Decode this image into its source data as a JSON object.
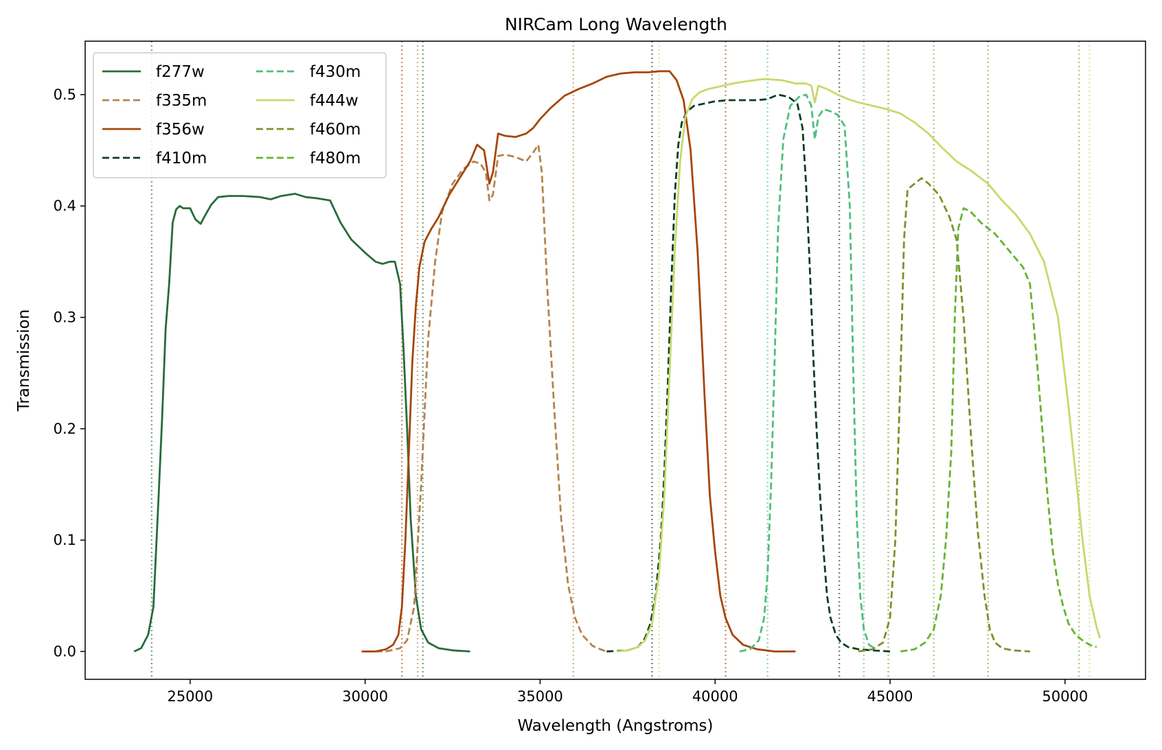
{
  "chart_data": {
    "type": "line",
    "title": "NIRCam Long Wavelength",
    "xlabel": "Wavelength (Angstroms)",
    "ylabel": "Transmission",
    "xlim": [
      22000,
      52300
    ],
    "ylim": [
      -0.025,
      0.548
    ],
    "xticks": [
      25000,
      30000,
      35000,
      40000,
      45000,
      50000
    ],
    "xtick_labels": [
      "25000",
      "30000",
      "35000",
      "40000",
      "45000",
      "50000"
    ],
    "yticks": [
      0.0,
      0.1,
      0.2,
      0.3,
      0.4,
      0.5
    ],
    "ytick_labels": [
      "0.0",
      "0.1",
      "0.2",
      "0.3",
      "0.4",
      "0.5"
    ],
    "grid": false,
    "legend": {
      "placement": "top-left",
      "columns": 2
    },
    "series": [
      {
        "name": "f277w",
        "color": "#276b3a",
        "dash": "solid",
        "edges": [
          23900,
          31650
        ],
        "x": [
          23400,
          23600,
          23800,
          23950,
          24100,
          24200,
          24300,
          24400,
          24500,
          24600,
          24700,
          24800,
          25000,
          25150,
          25300,
          25400,
          25600,
          25800,
          26100,
          26500,
          27000,
          27300,
          27600,
          28000,
          28300,
          28600,
          29000,
          29300,
          29600,
          30000,
          30300,
          30500,
          30700,
          30850,
          31000,
          31100,
          31200,
          31300,
          31450,
          31600,
          31800,
          32100,
          32500,
          33000
        ],
        "y": [
          0.0,
          0.003,
          0.015,
          0.04,
          0.14,
          0.21,
          0.29,
          0.33,
          0.385,
          0.397,
          0.4,
          0.398,
          0.398,
          0.388,
          0.384,
          0.39,
          0.401,
          0.408,
          0.409,
          0.409,
          0.408,
          0.406,
          0.409,
          0.411,
          0.408,
          0.407,
          0.405,
          0.385,
          0.37,
          0.358,
          0.35,
          0.348,
          0.35,
          0.35,
          0.33,
          0.27,
          0.2,
          0.12,
          0.05,
          0.02,
          0.008,
          0.003,
          0.001,
          0.0
        ]
      },
      {
        "name": "f335m",
        "color": "#b5834e",
        "dash": "dashed",
        "edges": [
          31500,
          35950
        ],
        "x": [
          30000,
          30600,
          31000,
          31200,
          31400,
          31600,
          31800,
          32000,
          32200,
          32500,
          32800,
          33100,
          33300,
          33450,
          33550,
          33650,
          33800,
          34000,
          34300,
          34600,
          34800,
          34950,
          35050,
          35200,
          35400,
          35600,
          35800,
          36000,
          36200,
          36500,
          36800,
          37000
        ],
        "y": [
          0.0,
          0.0,
          0.003,
          0.01,
          0.04,
          0.15,
          0.28,
          0.35,
          0.395,
          0.42,
          0.433,
          0.44,
          0.438,
          0.43,
          0.405,
          0.41,
          0.445,
          0.446,
          0.444,
          0.44,
          0.448,
          0.455,
          0.43,
          0.33,
          0.22,
          0.12,
          0.06,
          0.03,
          0.015,
          0.005,
          0.001,
          0.0
        ]
      },
      {
        "name": "f356w",
        "color": "#a54608",
        "dash": "solid",
        "edges": [
          31050,
          40300
        ],
        "x": [
          29900,
          30300,
          30600,
          30800,
          30950,
          31050,
          31150,
          31250,
          31350,
          31450,
          31550,
          31700,
          31900,
          32100,
          32400,
          32700,
          33000,
          33200,
          33400,
          33550,
          33650,
          33800,
          34000,
          34300,
          34600,
          34800,
          35000,
          35300,
          35700,
          36100,
          36500,
          36900,
          37300,
          37700,
          38100,
          38400,
          38700,
          38900,
          39100,
          39300,
          39500,
          39700,
          39850,
          40000,
          40150,
          40300,
          40500,
          40800,
          41200,
          41700,
          42300
        ],
        "y": [
          0.0,
          0.0,
          0.002,
          0.006,
          0.015,
          0.04,
          0.1,
          0.18,
          0.26,
          0.31,
          0.345,
          0.368,
          0.38,
          0.39,
          0.41,
          0.425,
          0.44,
          0.455,
          0.45,
          0.42,
          0.43,
          0.465,
          0.463,
          0.462,
          0.465,
          0.47,
          0.478,
          0.488,
          0.499,
          0.505,
          0.51,
          0.516,
          0.519,
          0.52,
          0.52,
          0.521,
          0.521,
          0.513,
          0.495,
          0.45,
          0.36,
          0.23,
          0.14,
          0.09,
          0.05,
          0.03,
          0.015,
          0.006,
          0.002,
          0.0,
          0.0
        ]
      },
      {
        "name": "f410m",
        "color": "#0c3d22",
        "dash": "dashed",
        "edges": [
          38200,
          43550
        ],
        "x": [
          36900,
          37500,
          37800,
          38000,
          38150,
          38300,
          38450,
          38550,
          38650,
          38750,
          38850,
          38950,
          39050,
          39200,
          39400,
          39700,
          40000,
          40400,
          40800,
          41200,
          41500,
          41800,
          42100,
          42350,
          42500,
          42600,
          42700,
          42800,
          42900,
          43000,
          43100,
          43200,
          43300,
          43450,
          43600,
          43800,
          44100,
          44500,
          45000
        ],
        "y": [
          0.0,
          0.001,
          0.004,
          0.012,
          0.025,
          0.05,
          0.1,
          0.16,
          0.24,
          0.33,
          0.41,
          0.455,
          0.475,
          0.485,
          0.49,
          0.492,
          0.494,
          0.495,
          0.495,
          0.495,
          0.496,
          0.5,
          0.498,
          0.492,
          0.47,
          0.42,
          0.35,
          0.27,
          0.2,
          0.14,
          0.09,
          0.05,
          0.03,
          0.015,
          0.008,
          0.004,
          0.002,
          0.001,
          0.0
        ]
      },
      {
        "name": "f430m",
        "color": "#4fbe80",
        "dash": "dashed",
        "edges": [
          41500,
          44250
        ],
        "x": [
          40700,
          41000,
          41250,
          41400,
          41500,
          41600,
          41700,
          41800,
          41950,
          42150,
          42400,
          42600,
          42750,
          42850,
          42950,
          43100,
          43300,
          43500,
          43700,
          43850,
          43950,
          44050,
          44150,
          44250,
          44400,
          44600
        ],
        "y": [
          0.0,
          0.002,
          0.01,
          0.03,
          0.07,
          0.15,
          0.26,
          0.38,
          0.46,
          0.49,
          0.498,
          0.5,
          0.49,
          0.46,
          0.48,
          0.487,
          0.485,
          0.482,
          0.472,
          0.4,
          0.25,
          0.12,
          0.05,
          0.02,
          0.006,
          0.002
        ]
      },
      {
        "name": "f444w",
        "color": "#c7d96b",
        "dash": "solid",
        "edges": [
          38400,
          50700
        ],
        "x": [
          37200,
          37500,
          37800,
          38000,
          38200,
          38400,
          38550,
          38700,
          38850,
          39000,
          39150,
          39350,
          39550,
          39800,
          40100,
          40500,
          40900,
          41400,
          41900,
          42300,
          42600,
          42750,
          42850,
          42950,
          43200,
          43500,
          43800,
          44100,
          44500,
          44900,
          45300,
          45700,
          46100,
          46500,
          46900,
          47300,
          47800,
          48200,
          48600,
          49000,
          49400,
          49800,
          50100,
          50300,
          50500,
          50700,
          50900,
          51000
        ],
        "y": [
          0.0,
          0.001,
          0.004,
          0.01,
          0.025,
          0.07,
          0.14,
          0.25,
          0.36,
          0.44,
          0.48,
          0.496,
          0.502,
          0.505,
          0.507,
          0.51,
          0.512,
          0.514,
          0.513,
          0.51,
          0.51,
          0.508,
          0.493,
          0.508,
          0.505,
          0.5,
          0.496,
          0.493,
          0.49,
          0.487,
          0.483,
          0.475,
          0.465,
          0.452,
          0.44,
          0.432,
          0.42,
          0.405,
          0.392,
          0.375,
          0.35,
          0.3,
          0.22,
          0.16,
          0.1,
          0.05,
          0.022,
          0.012
        ]
      },
      {
        "name": "f460m",
        "color": "#7e9128",
        "dash": "dashed",
        "edges": [
          44950,
          47800
        ],
        "x": [
          44100,
          44500,
          44800,
          45000,
          45150,
          45300,
          45400,
          45500,
          45700,
          45900,
          46100,
          46400,
          46700,
          46900,
          47100,
          47300,
          47500,
          47700,
          47850,
          48000,
          48200,
          48500,
          49000
        ],
        "y": [
          0.0,
          0.002,
          0.008,
          0.03,
          0.1,
          0.25,
          0.37,
          0.415,
          0.42,
          0.425,
          0.42,
          0.41,
          0.39,
          0.37,
          0.3,
          0.2,
          0.11,
          0.05,
          0.02,
          0.008,
          0.003,
          0.001,
          0.0
        ]
      },
      {
        "name": "f480m",
        "color": "#66b32e",
        "dash": "dashed",
        "edges": [
          46250,
          50400
        ],
        "x": [
          45300,
          45700,
          46000,
          46250,
          46450,
          46600,
          46750,
          46850,
          46950,
          47100,
          47300,
          47600,
          48000,
          48400,
          48800,
          49000,
          49200,
          49350,
          49500,
          49650,
          49800,
          49950,
          50100,
          50300,
          50500,
          50700,
          50900
        ],
        "y": [
          0.0,
          0.002,
          0.008,
          0.02,
          0.05,
          0.1,
          0.18,
          0.3,
          0.38,
          0.398,
          0.395,
          0.385,
          0.375,
          0.36,
          0.345,
          0.33,
          0.26,
          0.2,
          0.14,
          0.09,
          0.06,
          0.04,
          0.025,
          0.015,
          0.01,
          0.006,
          0.004
        ]
      }
    ]
  }
}
